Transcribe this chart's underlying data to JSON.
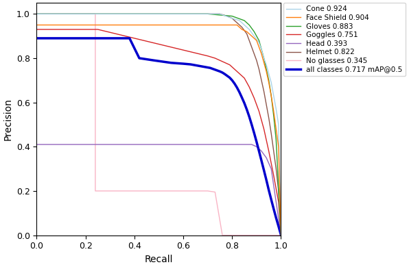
{
  "xlabel": "Recall",
  "ylabel": "Precision",
  "xlim": [
    0.0,
    1.0
  ],
  "ylim": [
    0.0,
    1.05
  ],
  "classes": [
    {
      "name": "Cone 0.924",
      "short": "Cone",
      "color": "#aad4e8",
      "lw": 1.0
    },
    {
      "name": "Face Shield 0.904",
      "short": "FaceShield",
      "color": "#ff7f0e",
      "lw": 1.0
    },
    {
      "name": "Gloves 0.883",
      "short": "Gloves",
      "color": "#2ca02c",
      "lw": 1.0
    },
    {
      "name": "Goggles 0.751",
      "short": "Goggles",
      "color": "#d62728",
      "lw": 1.0
    },
    {
      "name": "Head 0.393",
      "short": "Head",
      "color": "#9467bd",
      "lw": 1.0
    },
    {
      "name": "Helmet 0.822",
      "short": "Helmet",
      "color": "#8c564b",
      "lw": 1.0
    },
    {
      "name": "No glasses 0.345",
      "short": "NoGlasses",
      "color": "#f9b4c5",
      "lw": 1.0
    },
    {
      "name": "all classes 0.717 mAP@0.5",
      "short": "All",
      "color": "#0000cc",
      "lw": 2.5
    }
  ],
  "curves": {
    "Cone": {
      "r": [
        0.0,
        0.0,
        0.5,
        0.75,
        0.8,
        0.83,
        0.85,
        0.87,
        0.89,
        0.91,
        0.92,
        0.93,
        0.94,
        0.95,
        0.96,
        0.97,
        0.98,
        0.99,
        1.0
      ],
      "p": [
        1.0,
        1.0,
        1.0,
        1.0,
        0.98,
        0.97,
        0.95,
        0.93,
        0.9,
        0.87,
        0.84,
        0.8,
        0.77,
        0.73,
        0.69,
        0.63,
        0.57,
        0.5,
        0.0
      ]
    },
    "FaceShield": {
      "r": [
        0.0,
        0.0,
        0.82,
        0.84,
        0.86,
        0.88,
        0.9,
        0.91,
        0.92,
        0.93,
        0.94,
        0.95,
        0.96,
        0.97,
        0.98,
        0.99,
        1.0
      ],
      "p": [
        0.95,
        0.95,
        0.95,
        0.93,
        0.92,
        0.9,
        0.88,
        0.85,
        0.82,
        0.78,
        0.74,
        0.69,
        0.63,
        0.56,
        0.48,
        0.4,
        0.0
      ]
    },
    "Gloves": {
      "r": [
        0.0,
        0.0,
        0.55,
        0.7,
        0.8,
        0.85,
        0.87,
        0.89,
        0.91,
        0.92,
        0.93,
        0.94,
        0.95,
        0.96,
        0.97,
        0.98,
        1.0
      ],
      "p": [
        1.0,
        1.0,
        1.0,
        1.0,
        0.99,
        0.97,
        0.95,
        0.92,
        0.88,
        0.84,
        0.8,
        0.75,
        0.7,
        0.63,
        0.54,
        0.43,
        0.0
      ]
    },
    "Goggles": {
      "r": [
        0.0,
        0.0,
        0.25,
        0.7,
        0.73,
        0.75,
        0.77,
        0.79,
        0.81,
        0.83,
        0.85,
        0.87,
        0.89,
        0.91,
        0.93,
        0.95,
        0.97,
        0.99,
        1.0
      ],
      "p": [
        0.93,
        0.93,
        0.93,
        0.81,
        0.8,
        0.79,
        0.78,
        0.77,
        0.75,
        0.73,
        0.71,
        0.67,
        0.62,
        0.56,
        0.48,
        0.38,
        0.27,
        0.15,
        0.0
      ]
    },
    "Head": {
      "r": [
        0.0,
        0.0,
        0.85,
        0.88,
        0.9,
        0.92,
        0.94,
        0.96,
        1.0
      ],
      "p": [
        0.41,
        0.41,
        0.41,
        0.41,
        0.4,
        0.38,
        0.35,
        0.3,
        0.0
      ]
    },
    "Helmet": {
      "r": [
        0.0,
        0.0,
        0.5,
        0.65,
        0.75,
        0.78,
        0.8,
        0.82,
        0.84,
        0.86,
        0.87,
        0.88,
        0.89,
        0.9,
        0.91,
        0.92,
        0.93,
        0.94,
        0.95,
        0.96,
        0.97,
        0.98,
        0.99,
        1.0
      ],
      "p": [
        1.0,
        1.0,
        1.0,
        1.0,
        1.0,
        0.99,
        0.98,
        0.96,
        0.94,
        0.91,
        0.88,
        0.85,
        0.82,
        0.79,
        0.75,
        0.7,
        0.65,
        0.59,
        0.53,
        0.46,
        0.38,
        0.3,
        0.2,
        0.0
      ]
    },
    "NoGlasses": {
      "r": [
        0.0,
        0.0,
        0.24,
        0.24,
        0.35,
        0.7,
        0.73,
        0.76,
        0.79,
        1.0
      ],
      "p": [
        1.0,
        1.0,
        1.0,
        0.2,
        0.2,
        0.2,
        0.195,
        0.0,
        0.0,
        0.0
      ]
    },
    "All": {
      "r": [
        0.0,
        0.03,
        0.25,
        0.38,
        0.42,
        0.48,
        0.55,
        0.6,
        0.63,
        0.65,
        0.67,
        0.69,
        0.71,
        0.72,
        0.73,
        0.74,
        0.75,
        0.76,
        0.77,
        0.78,
        0.79,
        0.8,
        0.81,
        0.82,
        0.83,
        0.84,
        0.85,
        0.86,
        0.87,
        0.88,
        0.89,
        0.9,
        0.91,
        0.92,
        0.93,
        0.94,
        0.95,
        0.96,
        0.97,
        0.98,
        0.99,
        1.0
      ],
      "p": [
        0.89,
        0.89,
        0.89,
        0.89,
        0.8,
        0.79,
        0.779,
        0.775,
        0.772,
        0.768,
        0.764,
        0.76,
        0.756,
        0.752,
        0.748,
        0.744,
        0.74,
        0.735,
        0.728,
        0.72,
        0.712,
        0.7,
        0.685,
        0.667,
        0.646,
        0.622,
        0.597,
        0.568,
        0.536,
        0.5,
        0.462,
        0.422,
        0.38,
        0.337,
        0.294,
        0.25,
        0.204,
        0.161,
        0.119,
        0.078,
        0.04,
        0.0
      ]
    }
  },
  "draw_order": [
    "NoGlasses",
    "Head",
    "Goggles",
    "Helmet",
    "All",
    "Gloves",
    "Cone",
    "FaceShield"
  ],
  "legend_order": [
    "Cone",
    "FaceShield",
    "Gloves",
    "Goggles",
    "Head",
    "Helmet",
    "NoGlasses",
    "All"
  ]
}
